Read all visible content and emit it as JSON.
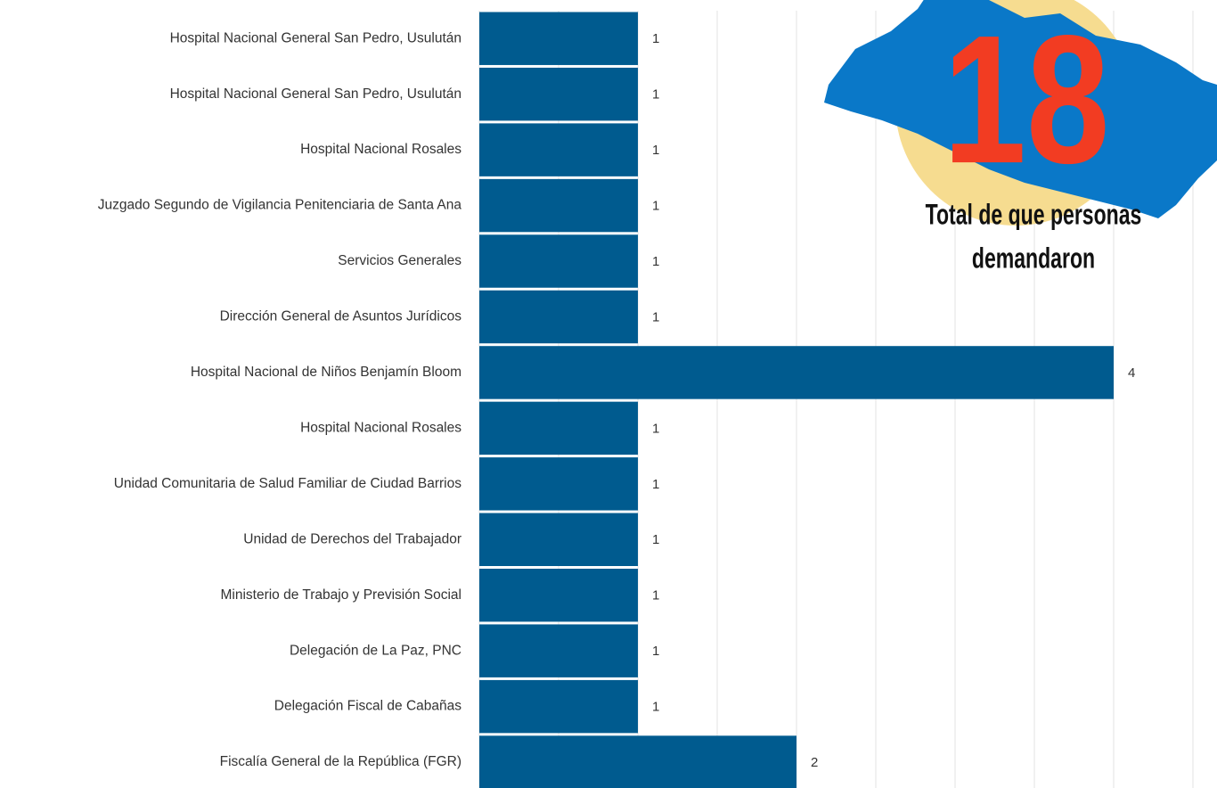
{
  "chart_data": {
    "type": "bar",
    "orientation": "horizontal",
    "categories": [
      "Hospital Nacional General San Pedro, Usulután",
      "Hospital Nacional General San Pedro, Usulután",
      "Hospital Nacional Rosales",
      "Juzgado Segundo de Vigilancia Penitenciaria de Santa Ana",
      "Servicios Generales",
      "Dirección General de Asuntos Jurídicos",
      "Hospital Nacional de Niños Benjamín Bloom",
      "Hospital Nacional Rosales",
      "Unidad Comunitaria de Salud Familiar de Ciudad Barrios",
      "Unidad de Derechos del Trabajador",
      "Ministerio de Trabajo y Previsión Social",
      "Delegación de La Paz, PNC",
      "Delegación Fiscal de Cabañas",
      "Fiscalía General de la República (FGR)"
    ],
    "values": [
      1,
      1,
      1,
      1,
      1,
      1,
      4,
      1,
      1,
      1,
      1,
      1,
      1,
      2
    ],
    "color": "#005b8f",
    "xlim": [
      0,
      4.5
    ],
    "xticks": [
      0,
      0.5,
      1,
      1.5,
      2,
      2.5,
      3,
      3.5,
      4,
      4.5
    ],
    "grid": true,
    "badge": {
      "number": 18,
      "caption": [
        "Total de que personas",
        "demandaron"
      ]
    }
  }
}
